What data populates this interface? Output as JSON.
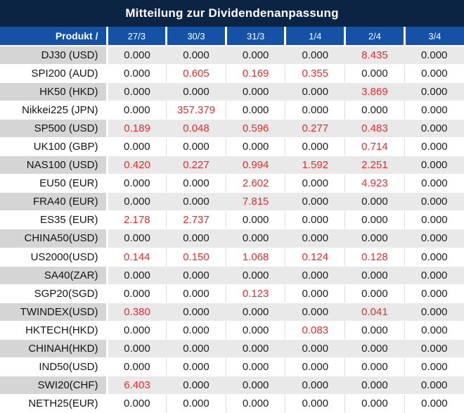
{
  "title": "Mitteilung zur Dividendenanpassung",
  "colors": {
    "title_bg": "#0c2444",
    "header_bg": "#1551a5",
    "header_text": "#ffffff",
    "row_gray_product": "#d5d5d5",
    "row_gray_value": "#e9e9e9",
    "row_white": "#ffffff",
    "value_text": "#202020",
    "highlight_red": "#e52b2b"
  },
  "header": {
    "product_label": "Produkt /",
    "dates": [
      "27/3",
      "30/3",
      "31/3",
      "1/4",
      "2/4",
      "3/4"
    ]
  },
  "rows": [
    {
      "product": "DJ30 (USD)",
      "values": [
        "0.000",
        "0.000",
        "0.000",
        "0.000",
        "8.435",
        "0.000"
      ],
      "red": [
        false,
        false,
        false,
        false,
        true,
        false
      ]
    },
    {
      "product": "SPI200 (AUD)",
      "values": [
        "0.000",
        "0.605",
        "0.169",
        "0.355",
        "0.000",
        "0.000"
      ],
      "red": [
        false,
        true,
        true,
        true,
        false,
        false
      ]
    },
    {
      "product": "HK50 (HKD)",
      "values": [
        "0.000",
        "0.000",
        "0.000",
        "0.000",
        "3.869",
        "0.000"
      ],
      "red": [
        false,
        false,
        false,
        false,
        true,
        false
      ]
    },
    {
      "product": "Nikkei225 (JPN)",
      "values": [
        "0.000",
        "357.379",
        "0.000",
        "0.000",
        "0.000",
        "0.000"
      ],
      "red": [
        false,
        true,
        false,
        false,
        false,
        false
      ]
    },
    {
      "product": "SP500 (USD)",
      "values": [
        "0.189",
        "0.048",
        "0.596",
        "0.277",
        "0.483",
        "0.000"
      ],
      "red": [
        true,
        true,
        true,
        true,
        true,
        false
      ]
    },
    {
      "product": "UK100 (GBP)",
      "values": [
        "0.000",
        "0.000",
        "0.000",
        "0.000",
        "0.714",
        "0.000"
      ],
      "red": [
        false,
        false,
        false,
        false,
        true,
        false
      ]
    },
    {
      "product": "NAS100 (USD)",
      "values": [
        "0.420",
        "0.227",
        "0.994",
        "1.592",
        "2.251",
        "0.000"
      ],
      "red": [
        true,
        true,
        true,
        true,
        true,
        false
      ]
    },
    {
      "product": "EU50 (EUR)",
      "values": [
        "0.000",
        "0.000",
        "2.602",
        "0.000",
        "4.923",
        "0.000"
      ],
      "red": [
        false,
        false,
        true,
        false,
        true,
        false
      ]
    },
    {
      "product": "FRA40 (EUR)",
      "values": [
        "0.000",
        "0.000",
        "7.815",
        "0.000",
        "0.000",
        "0.000"
      ],
      "red": [
        false,
        false,
        true,
        false,
        false,
        false
      ]
    },
    {
      "product": "ES35 (EUR)",
      "values": [
        "2.178",
        "2.737",
        "0.000",
        "0.000",
        "0.000",
        "0.000"
      ],
      "red": [
        true,
        true,
        false,
        false,
        false,
        false
      ]
    },
    {
      "product": "CHINA50(USD)",
      "values": [
        "0.000",
        "0.000",
        "0.000",
        "0.000",
        "0.000",
        "0.000"
      ],
      "red": [
        false,
        false,
        false,
        false,
        false,
        false
      ]
    },
    {
      "product": "US2000(USD)",
      "values": [
        "0.144",
        "0.150",
        "1.068",
        "0.124",
        "0.128",
        "0.000"
      ],
      "red": [
        true,
        true,
        true,
        true,
        true,
        false
      ]
    },
    {
      "product": "SA40(ZAR)",
      "values": [
        "0.000",
        "0.000",
        "0.000",
        "0.000",
        "0.000",
        "0.000"
      ],
      "red": [
        false,
        false,
        false,
        false,
        false,
        false
      ]
    },
    {
      "product": "SGP20(SGD)",
      "values": [
        "0.000",
        "0.000",
        "0.123",
        "0.000",
        "0.000",
        "0.000"
      ],
      "red": [
        false,
        false,
        true,
        false,
        false,
        false
      ]
    },
    {
      "product": "TWINDEX(USD)",
      "values": [
        "0.380",
        "0.000",
        "0.000",
        "0.000",
        "0.041",
        "0.000"
      ],
      "red": [
        true,
        false,
        false,
        false,
        true,
        false
      ]
    },
    {
      "product": "HKTECH(HKD)",
      "values": [
        "0.000",
        "0.000",
        "0.000",
        "0.083",
        "0.000",
        "0.000"
      ],
      "red": [
        false,
        false,
        false,
        true,
        false,
        false
      ]
    },
    {
      "product": "CHINAH(HKD)",
      "values": [
        "0.000",
        "0.000",
        "0.000",
        "0.000",
        "0.000",
        "0.000"
      ],
      "red": [
        false,
        false,
        false,
        false,
        false,
        false
      ]
    },
    {
      "product": "IND50(USD)",
      "values": [
        "0.000",
        "0.000",
        "0.000",
        "0.000",
        "0.000",
        "0.000"
      ],
      "red": [
        false,
        false,
        false,
        false,
        false,
        false
      ]
    },
    {
      "product": "SWI20(CHF)",
      "values": [
        "6.403",
        "0.000",
        "0.000",
        "0.000",
        "0.000",
        "0.000"
      ],
      "red": [
        true,
        false,
        false,
        false,
        false,
        false
      ]
    },
    {
      "product": "NETH25(EUR)",
      "values": [
        "0.000",
        "0.000",
        "0.000",
        "0.000",
        "0.000",
        "0.000"
      ],
      "red": [
        false,
        false,
        false,
        false,
        false,
        false
      ]
    }
  ]
}
